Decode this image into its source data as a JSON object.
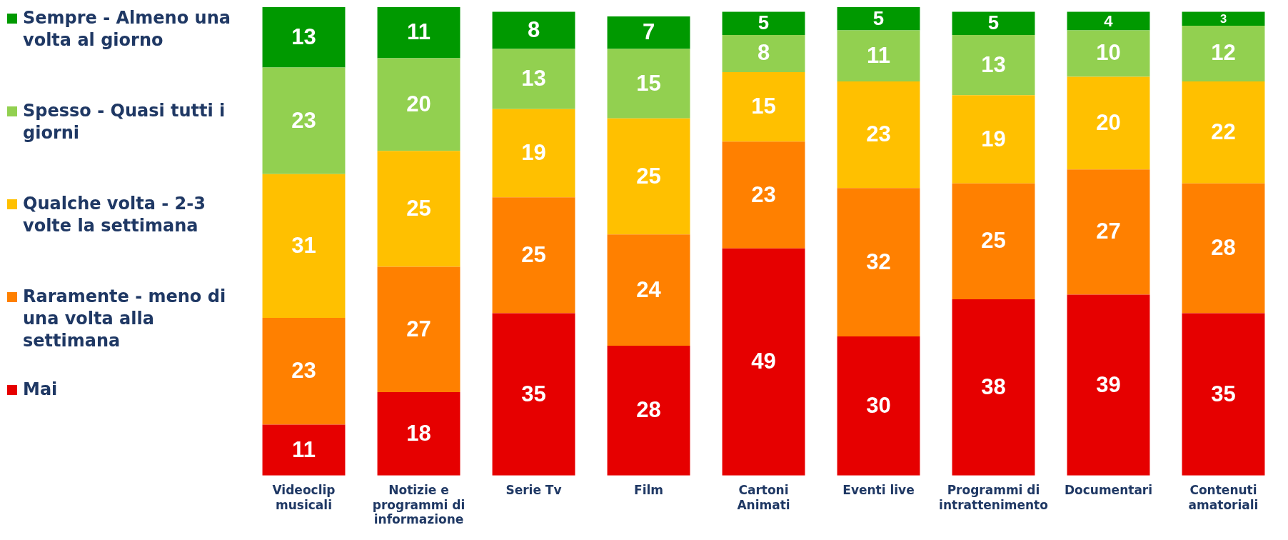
{
  "chart_data": {
    "type": "bar",
    "stacked": true,
    "data_labels": true,
    "legend": "left",
    "grid": false,
    "categories": [
      "Videoclip musicali",
      "Notizie e programmi di informazione",
      "Serie Tv",
      "Film",
      "Cartoni Animati",
      "Eventi live",
      "Programmi di intrattenimento",
      "Documentari",
      "Contenuti amatoriali"
    ],
    "series": [
      {
        "name": "Mai",
        "color": "#e60000",
        "values": [
          11,
          18,
          35,
          28,
          49,
          30,
          38,
          39,
          35
        ]
      },
      {
        "name": "Raramente - meno di una volta alla settimana",
        "color": "#ff8000",
        "values": [
          23,
          27,
          25,
          24,
          23,
          32,
          25,
          27,
          28
        ]
      },
      {
        "name": "Qualche volta - 2-3 volte la settimana",
        "color": "#ffc000",
        "values": [
          31,
          25,
          19,
          25,
          15,
          23,
          19,
          20,
          22
        ]
      },
      {
        "name": "Spesso - Quasi tutti i giorni",
        "color": "#92d050",
        "values": [
          23,
          20,
          13,
          15,
          8,
          11,
          13,
          10,
          12
        ]
      },
      {
        "name": "Sempre - Almeno una volta al giorno",
        "color": "#009900",
        "values": [
          13,
          11,
          8,
          7,
          5,
          5,
          5,
          4,
          3
        ]
      }
    ]
  }
}
